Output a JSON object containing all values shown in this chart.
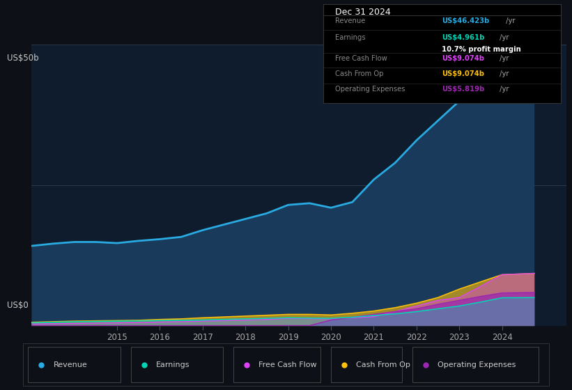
{
  "background_color": "#0d1117",
  "plot_bg_color": "#0e1c2e",
  "years": [
    2013.0,
    2013.5,
    2014.0,
    2014.5,
    2015.0,
    2015.5,
    2016.0,
    2016.5,
    2017.0,
    2017.5,
    2018.0,
    2018.5,
    2019.0,
    2019.5,
    2020.0,
    2020.5,
    2021.0,
    2021.5,
    2022.0,
    2022.5,
    2023.0,
    2023.5,
    2024.0,
    2024.75
  ],
  "revenue": [
    14.2,
    14.6,
    14.9,
    14.9,
    14.7,
    15.1,
    15.4,
    15.8,
    17.0,
    18.0,
    19.0,
    20.0,
    21.5,
    21.8,
    21.0,
    22.0,
    26.0,
    29.0,
    33.0,
    36.5,
    40.0,
    43.0,
    46.423,
    47.5
  ],
  "earnings": [
    0.5,
    0.6,
    0.7,
    0.75,
    0.8,
    0.85,
    0.9,
    0.95,
    1.0,
    1.1,
    1.2,
    1.3,
    1.4,
    1.35,
    1.3,
    1.5,
    1.8,
    2.1,
    2.5,
    3.0,
    3.5,
    4.2,
    4.961,
    5.0
  ],
  "free_cash_flow": [
    0.3,
    0.35,
    0.4,
    0.45,
    0.5,
    0.55,
    0.65,
    0.7,
    0.8,
    0.9,
    1.0,
    1.1,
    1.3,
    1.25,
    1.2,
    1.4,
    1.6,
    2.5,
    3.5,
    4.5,
    5.0,
    7.0,
    9.074,
    9.3
  ],
  "cash_from_op": [
    0.6,
    0.7,
    0.8,
    0.85,
    0.9,
    0.95,
    1.1,
    1.2,
    1.4,
    1.55,
    1.7,
    1.85,
    2.0,
    2.0,
    1.9,
    2.2,
    2.6,
    3.2,
    4.0,
    5.0,
    6.5,
    7.8,
    9.074,
    9.3
  ],
  "operating_expenses": [
    0.0,
    0.0,
    0.0,
    0.0,
    0.0,
    0.0,
    0.0,
    0.0,
    0.0,
    0.0,
    0.0,
    0.0,
    0.0,
    0.0,
    1.0,
    1.5,
    2.0,
    2.5,
    3.0,
    3.8,
    4.5,
    5.2,
    5.819,
    5.9
  ],
  "revenue_color": "#29abe2",
  "earnings_color": "#00d4b4",
  "fcf_color": "#e040fb",
  "cashop_color": "#ffc107",
  "opex_color": "#9c27b0",
  "revenue_fill_color": "#1a3a5c",
  "ylim": [
    0,
    50
  ],
  "xlim": [
    2013.0,
    2025.5
  ],
  "ylabel_top": "US$50b",
  "ylabel_bot": "US$0",
  "xticks": [
    2015,
    2016,
    2017,
    2018,
    2019,
    2020,
    2021,
    2022,
    2023,
    2024
  ],
  "info_title": "Dec 31 2024",
  "info_rows": [
    {
      "label": "Revenue",
      "value": "US$46.423b",
      "suffix": " /yr",
      "color": "#29abe2",
      "extra": null
    },
    {
      "label": "Earnings",
      "value": "US$4.961b",
      "suffix": " /yr",
      "color": "#00d4b4",
      "extra": "10.7% profit margin"
    },
    {
      "label": "Free Cash Flow",
      "value": "US$9.074b",
      "suffix": " /yr",
      "color": "#e040fb",
      "extra": null
    },
    {
      "label": "Cash From Op",
      "value": "US$9.074b",
      "suffix": " /yr",
      "color": "#ffc107",
      "extra": null
    },
    {
      "label": "Operating Expenses",
      "value": "US$5.819b",
      "suffix": " /yr",
      "color": "#9c27b0",
      "extra": null
    }
  ],
  "legend_items": [
    "Revenue",
    "Earnings",
    "Free Cash Flow",
    "Cash From Op",
    "Operating Expenses"
  ],
  "legend_colors": [
    "#29abe2",
    "#00d4b4",
    "#e040fb",
    "#ffc107",
    "#9c27b0"
  ]
}
